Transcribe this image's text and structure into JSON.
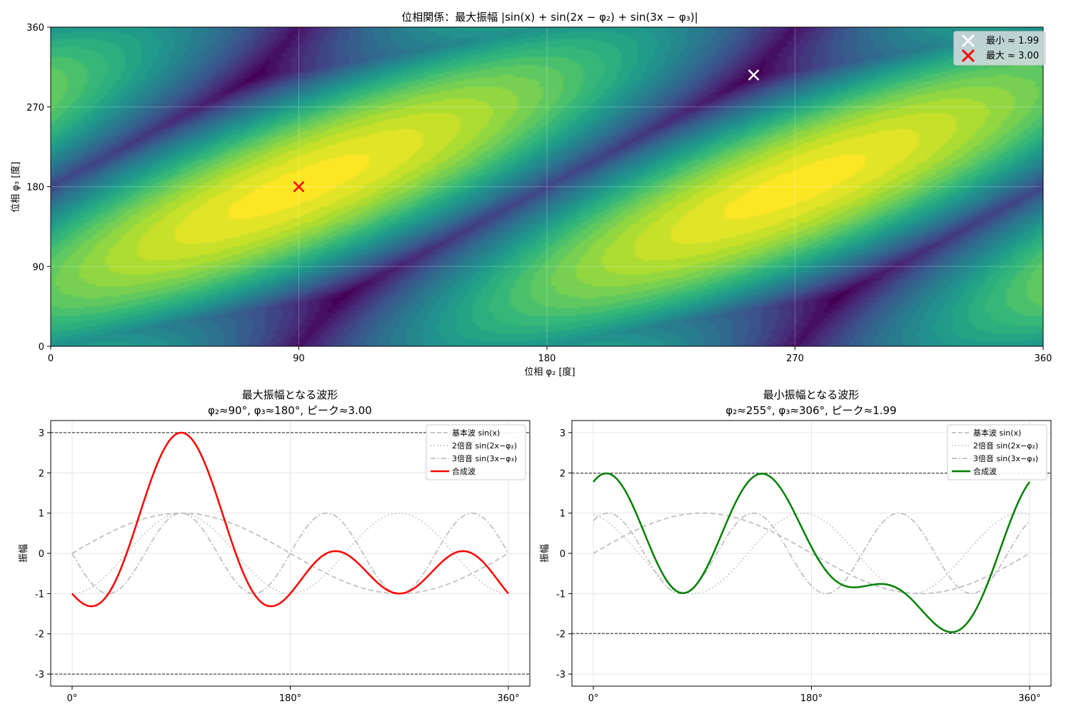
{
  "chart_data": [
    {
      "type": "heatmap",
      "title": "位相関係：最大振幅 |sin(x) + sin(2x − φ₂) + sin(3x − φ₃)|",
      "xlabel": "位相 φ₂ [度]",
      "ylabel": "位相 φ₃ [度]",
      "xlim": [
        0,
        360
      ],
      "ylim": [
        0,
        360
      ],
      "x_ticks": [
        "0",
        "90",
        "180",
        "270",
        "360"
      ],
      "y_ticks": [
        "0",
        "90",
        "180",
        "270",
        "360"
      ],
      "colormap": "viridis",
      "grid": true,
      "z_range": [
        1.99,
        3.0
      ],
      "markers": [
        {
          "label": "最小 ≈ 1.99",
          "x": 255,
          "y": 306,
          "color": "#ffffff",
          "symbol": "x"
        },
        {
          "label": "最大 ≈ 3.00",
          "x": 90,
          "y": 180,
          "color": "#ff0000",
          "symbol": "x"
        }
      ],
      "legend_position": "top-right"
    },
    {
      "type": "line",
      "title_line1": "最大振幅となる波形",
      "title_line2": "φ₂≈90°, φ₃≈180°, ピーク≈3.00",
      "ylabel": "振幅",
      "xlim": [
        0,
        360
      ],
      "ylim": [
        -3.3,
        3.3
      ],
      "x_ticks": [
        "0°",
        "180°",
        "360°"
      ],
      "y_ticks": [
        "-3",
        "-2",
        "-1",
        "0",
        "1",
        "2",
        "3"
      ],
      "phi2": 90,
      "phi3": 180,
      "hlines": [
        3.0,
        -3.0
      ],
      "grid": true,
      "legend_position": "top-right",
      "series": [
        {
          "name": "基本波 sin(x)",
          "style": "dashed",
          "color": "#c0c0c0"
        },
        {
          "name": "2倍音 sin(2x−φ₂)",
          "style": "dotted",
          "color": "#c0c0c0"
        },
        {
          "name": "3倍音 sin(3x−φ₃)",
          "style": "dashdot",
          "color": "#c0c0c0"
        },
        {
          "name": "合成波",
          "style": "solid",
          "color": "#ff0000"
        }
      ]
    },
    {
      "type": "line",
      "title_line1": "最小振幅となる波形",
      "title_line2": "φ₂≈255°, φ₃≈306°, ピーク≈1.99",
      "ylabel": "振幅",
      "xlim": [
        0,
        360
      ],
      "ylim": [
        -3.3,
        3.3
      ],
      "x_ticks": [
        "0°",
        "180°",
        "360°"
      ],
      "y_ticks": [
        "-3",
        "-2",
        "-1",
        "0",
        "1",
        "2",
        "3"
      ],
      "phi2": 255,
      "phi3": 306,
      "hlines": [
        1.99,
        -1.99
      ],
      "grid": true,
      "legend_position": "top-right",
      "series": [
        {
          "name": "基本波 sin(x)",
          "style": "dashed",
          "color": "#c0c0c0"
        },
        {
          "name": "2倍音 sin(2x−φ₂)",
          "style": "dotted",
          "color": "#c0c0c0"
        },
        {
          "name": "3倍音 sin(3x−φ₃)",
          "style": "dashdot",
          "color": "#c0c0c0"
        },
        {
          "name": "合成波",
          "style": "solid",
          "color": "#008000"
        }
      ]
    }
  ]
}
